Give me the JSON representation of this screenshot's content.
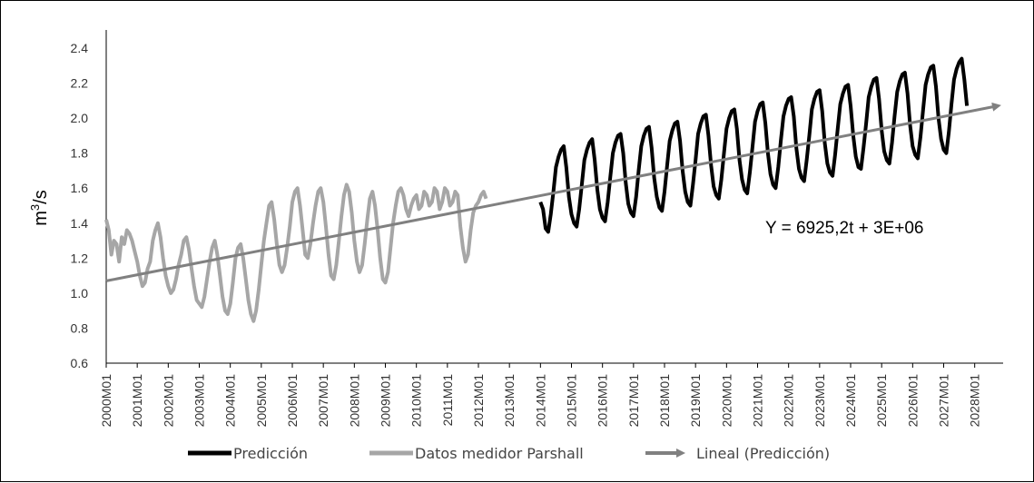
{
  "chart_data": {
    "type": "line",
    "ylabel": "m",
    "ylabel_sup": "3",
    "ylabel_tail": "/s",
    "ylim": [
      0.6,
      2.4
    ],
    "yticks": [
      "0.6",
      "0.8",
      "1.0",
      "1.2",
      "1.4",
      "1.6",
      "1.8",
      "2.0",
      "2.2",
      "2.4"
    ],
    "x_range": [
      "2000M01",
      "2028M12"
    ],
    "x_tick_labels": [
      "2000M01",
      "2001M01",
      "2002M01",
      "2003M01",
      "2004M01",
      "2005M01",
      "2006M01",
      "2007M01",
      "2008M01",
      "2009M01",
      "2010M01",
      "2011M01",
      "2012M01",
      "2013M01",
      "2014M01",
      "2015M01",
      "2016M01",
      "2017M01",
      "2018M01",
      "2019M01",
      "2020M01",
      "2021M01",
      "2022M01",
      "2023M01",
      "2024M01",
      "2025M01",
      "2026M01",
      "2027M01",
      "2028M01"
    ],
    "annotation": "Y = 6925,2t + 3E+06",
    "legend_position": "bottom",
    "series": [
      {
        "name": "Predicción",
        "color": "#000000",
        "x_start": "2014M01",
        "values": [
          1.52,
          1.48,
          1.37,
          1.35,
          1.45,
          1.58,
          1.72,
          1.78,
          1.82,
          1.84,
          1.72,
          1.55,
          1.45,
          1.4,
          1.38,
          1.48,
          1.62,
          1.76,
          1.82,
          1.86,
          1.88,
          1.76,
          1.59,
          1.48,
          1.43,
          1.41,
          1.52,
          1.66,
          1.8,
          1.86,
          1.9,
          1.91,
          1.8,
          1.63,
          1.51,
          1.46,
          1.44,
          1.55,
          1.7,
          1.84,
          1.9,
          1.94,
          1.95,
          1.83,
          1.66,
          1.55,
          1.49,
          1.47,
          1.58,
          1.73,
          1.87,
          1.93,
          1.97,
          1.98,
          1.87,
          1.7,
          1.58,
          1.52,
          1.5,
          1.62,
          1.76,
          1.91,
          1.97,
          2.01,
          2.02,
          1.9,
          1.73,
          1.61,
          1.56,
          1.54,
          1.65,
          1.8,
          1.94,
          2.0,
          2.04,
          2.05,
          1.94,
          1.76,
          1.65,
          1.59,
          1.57,
          1.69,
          1.83,
          1.98,
          2.04,
          2.08,
          2.09,
          1.97,
          1.8,
          1.68,
          1.62,
          1.6,
          1.72,
          1.87,
          2.01,
          2.07,
          2.11,
          2.12,
          2.01,
          1.83,
          1.71,
          1.66,
          1.64,
          1.76,
          1.9,
          2.05,
          2.11,
          2.15,
          2.16,
          2.04,
          1.86,
          1.74,
          1.69,
          1.67,
          1.79,
          1.94,
          2.08,
          2.14,
          2.18,
          2.19,
          2.07,
          1.9,
          1.78,
          1.72,
          1.71,
          1.83,
          1.97,
          2.12,
          2.18,
          2.22,
          2.23,
          2.11,
          1.93,
          1.81,
          1.76,
          1.74,
          1.86,
          2.01,
          2.15,
          2.21,
          2.25,
          2.26,
          2.14,
          1.96,
          1.84,
          1.79,
          1.77,
          1.89,
          2.04,
          2.19,
          2.25,
          2.29,
          2.3,
          2.18,
          2.0,
          1.88,
          1.82,
          1.8,
          1.92,
          2.08,
          2.22,
          2.28,
          2.32,
          2.34,
          2.22,
          2.07
        ]
      },
      {
        "name": "Datos medidor Parshall",
        "color": "#a6a6a6",
        "x_start": "2000M01",
        "values": [
          1.42,
          1.36,
          1.22,
          1.3,
          1.28,
          1.18,
          1.32,
          1.28,
          1.36,
          1.34,
          1.3,
          1.24,
          1.18,
          1.1,
          1.04,
          1.06,
          1.14,
          1.18,
          1.3,
          1.36,
          1.4,
          1.32,
          1.2,
          1.1,
          1.04,
          1.0,
          1.02,
          1.08,
          1.16,
          1.22,
          1.3,
          1.32,
          1.25,
          1.14,
          1.04,
          0.96,
          0.94,
          0.92,
          0.98,
          1.08,
          1.18,
          1.26,
          1.3,
          1.22,
          1.1,
          0.98,
          0.9,
          0.88,
          0.94,
          1.06,
          1.2,
          1.26,
          1.28,
          1.2,
          1.08,
          0.96,
          0.88,
          0.84,
          0.9,
          1.02,
          1.16,
          1.3,
          1.4,
          1.5,
          1.52,
          1.42,
          1.28,
          1.16,
          1.12,
          1.16,
          1.26,
          1.38,
          1.52,
          1.58,
          1.6,
          1.5,
          1.36,
          1.22,
          1.2,
          1.28,
          1.4,
          1.5,
          1.58,
          1.6,
          1.52,
          1.38,
          1.22,
          1.1,
          1.08,
          1.16,
          1.3,
          1.44,
          1.56,
          1.62,
          1.58,
          1.46,
          1.3,
          1.18,
          1.12,
          1.16,
          1.28,
          1.42,
          1.54,
          1.58,
          1.5,
          1.36,
          1.2,
          1.08,
          1.06,
          1.12,
          1.26,
          1.4,
          1.5,
          1.58,
          1.6,
          1.56,
          1.48,
          1.44,
          1.5,
          1.54,
          1.56,
          1.48,
          1.5,
          1.58,
          1.56,
          1.5,
          1.52,
          1.6,
          1.58,
          1.48,
          1.52,
          1.6,
          1.58,
          1.5,
          1.52,
          1.58,
          1.56,
          1.38,
          1.26,
          1.18,
          1.22,
          1.36,
          1.46,
          1.5,
          1.52,
          1.56,
          1.58,
          1.54
        ]
      },
      {
        "name": "Lineal (Predicción)",
        "color": "#808080",
        "x_start": "2000M01",
        "endpoints": [
          1.07,
          2.07
        ]
      }
    ]
  }
}
